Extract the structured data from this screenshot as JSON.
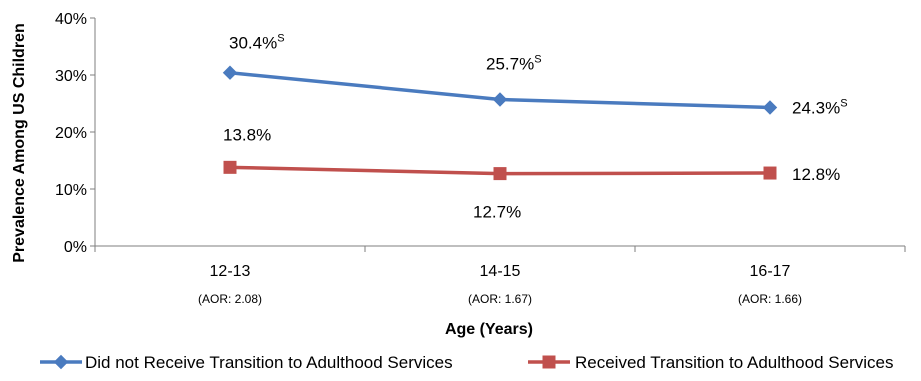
{
  "chart_data": {
    "type": "line",
    "categories": [
      "12-13",
      "14-15",
      "16-17"
    ],
    "category_sublabels": [
      "(AOR: 2.08)",
      "(AOR: 1.67)",
      "(AOR: 1.66)"
    ],
    "xlabel": "Age (Years)",
    "ylabel": "Prevalence  Among US Children",
    "ylim": [
      0,
      40
    ],
    "y_ticks": [
      "0%",
      "10%",
      "20%",
      "30%",
      "40%"
    ],
    "grid": false,
    "legend_position": "bottom",
    "series": [
      {
        "name": "Did not Receive Transition to Adulthood Services",
        "values": [
          30.4,
          25.7,
          24.3
        ],
        "labels": [
          "30.4%",
          "25.7%",
          "24.3%"
        ],
        "label_superscripts": [
          "S",
          "S",
          "S"
        ],
        "color": "#4a7bbf",
        "marker": "diamond"
      },
      {
        "name": "Received Transition to Adulthood Services",
        "values": [
          13.8,
          12.7,
          12.8
        ],
        "labels": [
          "13.8%",
          "12.7%",
          "12.8%"
        ],
        "label_superscripts": [
          "",
          "",
          ""
        ],
        "color": "#c0504d",
        "marker": "square"
      }
    ]
  }
}
